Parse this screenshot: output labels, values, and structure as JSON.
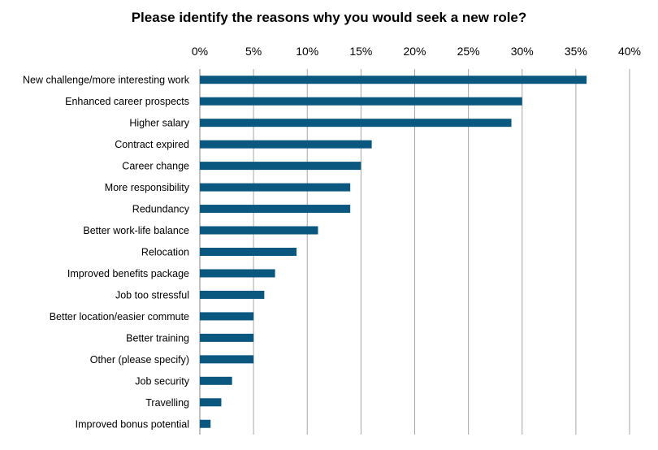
{
  "chart_data": {
    "type": "bar",
    "orientation": "horizontal",
    "title": "Please identify the reasons why you would seek a new role?",
    "xlabel": "",
    "ylabel": "",
    "xlim": [
      0,
      40
    ],
    "x_ticks": [
      "0%",
      "5%",
      "10%",
      "15%",
      "20%",
      "25%",
      "30%",
      "35%",
      "40%"
    ],
    "x_tick_values": [
      0,
      5,
      10,
      15,
      20,
      25,
      30,
      35,
      40
    ],
    "x_axis_position": "top",
    "grid": true,
    "legend": "none",
    "bar_color": "#0a5780",
    "categories": [
      "New challenge/more interesting work",
      "Enhanced career prospects",
      "Higher salary",
      "Contract expired",
      "Career change",
      "More responsibility",
      "Redundancy",
      "Better work-life balance",
      "Relocation",
      "Improved benefits package",
      "Job too stressful",
      "Better location/easier commute",
      "Better training",
      "Other (please specify)",
      "Job security",
      "Travelling",
      "Improved bonus potential"
    ],
    "values": [
      36,
      30,
      29,
      16,
      15,
      14,
      14,
      11,
      9,
      7,
      6,
      5,
      5,
      5,
      3,
      2,
      1
    ]
  }
}
